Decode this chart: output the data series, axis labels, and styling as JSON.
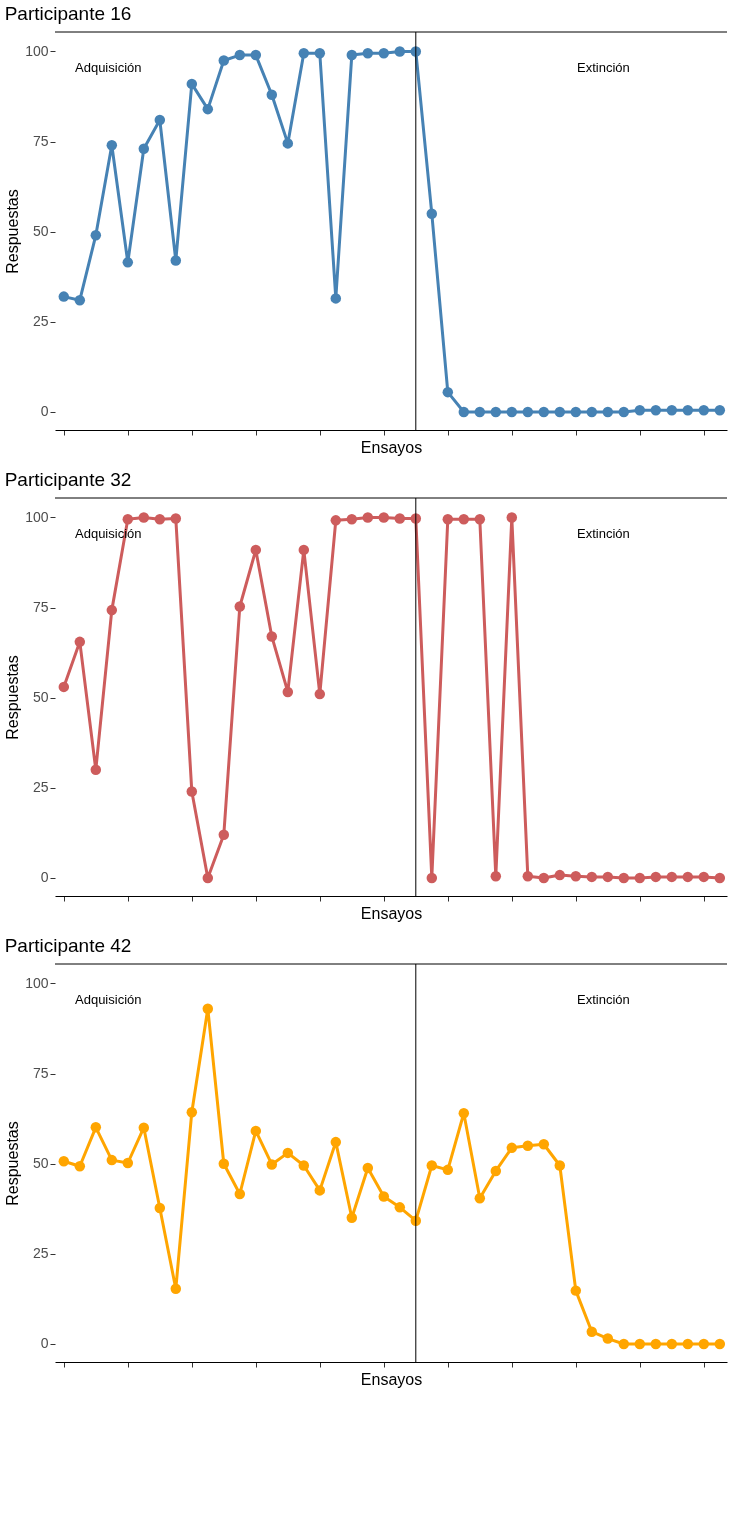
{
  "chart_data": [
    {
      "type": "line",
      "title": "Participante 16",
      "xlabel": "Ensayos",
      "ylabel": "Respuestas",
      "annotations": [
        "Adquisición",
        "Extinción"
      ],
      "categories": [
        null,
        null,
        null,
        null,
        null,
        null,
        null,
        null,
        null,
        null,
        null,
        null,
        null,
        null,
        null,
        null,
        null,
        null,
        null,
        null,
        null,
        null,
        null,
        null,
        null,
        null,
        null,
        null,
        null,
        null,
        null,
        null,
        null,
        null,
        null,
        null,
        null,
        null,
        null,
        null,
        null,
        null
      ],
      "series": [
        {
          "color": "#4682b4",
          "values": [
            32,
            31,
            49,
            74,
            41.5,
            73,
            81,
            42,
            91,
            84,
            97.5,
            99,
            99,
            88,
            74.5,
            99.5,
            99.5,
            31.5,
            99,
            99.5,
            99.5,
            100,
            100,
            55,
            5.5,
            0,
            0,
            0,
            0,
            0,
            0,
            0,
            0,
            0,
            0,
            0,
            0.5,
            0.5,
            0.5,
            0.5,
            0.5,
            0.5
          ]
        }
      ],
      "ylim": [
        -5,
        105.4
      ],
      "yticks": [
        0,
        25,
        50,
        75,
        100
      ],
      "tick_labels": "y",
      "marker": "circle"
    },
    {
      "type": "line",
      "title": "Participante 32",
      "xlabel": "Ensayos",
      "ylabel": "Respuestas",
      "annotations": [
        "Adquisición",
        "Extinción"
      ],
      "categories": [
        null,
        null,
        null,
        null,
        null,
        null,
        null,
        null,
        null,
        null,
        null,
        null,
        null,
        null,
        null,
        null,
        null,
        null,
        null,
        null,
        null,
        null,
        null,
        null,
        null,
        null,
        null,
        null,
        null,
        null,
        null,
        null,
        null,
        null,
        null,
        null,
        null,
        null,
        null,
        null,
        null,
        null
      ],
      "series": [
        {
          "color": "#cd5c5c",
          "values": [
            53,
            65.5,
            30,
            74.3,
            99.5,
            100,
            99.5,
            99.7,
            24,
            0,
            12,
            75.3,
            91,
            67,
            51.6,
            91,
            51,
            99.2,
            99.5,
            100,
            100,
            99.7,
            99.7,
            0,
            99.5,
            99.5,
            99.5,
            0.5,
            100,
            0.5,
            0,
            0.8,
            0.5,
            0.3,
            0.3,
            0,
            0,
            0.3,
            0.3,
            0.3,
            0.3,
            0
          ]
        }
      ],
      "ylim": [
        -5,
        105.4
      ],
      "yticks": [
        0,
        25,
        50,
        75,
        100
      ],
      "tick_labels": "y",
      "marker": "circle"
    },
    {
      "type": "line",
      "title": "Participante 42",
      "xlabel": "Ensayos",
      "ylabel": "Respuestas",
      "annotations": [
        "Adquisición",
        "Extinción"
      ],
      "categories": [
        null,
        null,
        null,
        null,
        null,
        null,
        null,
        null,
        null,
        null,
        null,
        null,
        null,
        null,
        null,
        null,
        null,
        null,
        null,
        null,
        null,
        null,
        null,
        null,
        null,
        null,
        null,
        null,
        null,
        null,
        null,
        null,
        null,
        null,
        null,
        null,
        null,
        null,
        null,
        null,
        null,
        null
      ],
      "series": [
        {
          "color": "#ffa500",
          "values": [
            50.7,
            49.3,
            60.1,
            51,
            50.2,
            60,
            37.7,
            15.3,
            64.3,
            93,
            50,
            41.6,
            59.1,
            49.8,
            53,
            49.5,
            42.6,
            56,
            35,
            48.8,
            40.9,
            37.9,
            34.2,
            49.5,
            48.3,
            64,
            40.4,
            48,
            54.4,
            55,
            55.4,
            49.5,
            14.8,
            3.4,
            1.5,
            0,
            0,
            0,
            0,
            0,
            0,
            0
          ]
        }
      ],
      "ylim": [
        -5,
        105.4
      ],
      "yticks": [
        0,
        25,
        50,
        75,
        100
      ],
      "tick_labels": "y",
      "marker": "circle"
    }
  ]
}
